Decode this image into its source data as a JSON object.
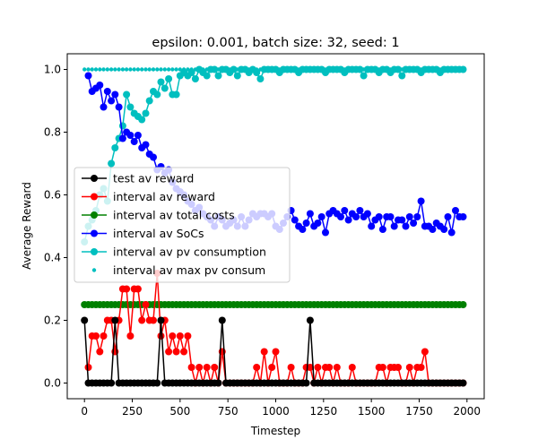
{
  "chart_data": {
    "type": "line",
    "title": "epsilon: 0.001, batch size: 32, seed: 1",
    "xlabel": "Timestep",
    "ylabel": "Average Reward",
    "xlim": [
      -90,
      2090
    ],
    "ylim": [
      -0.05,
      1.05
    ],
    "xticks": [
      0,
      250,
      500,
      750,
      1000,
      1250,
      1500,
      1750,
      2000
    ],
    "xtick_labels": [
      "0",
      "250",
      "500",
      "750",
      "1000",
      "1250",
      "1500",
      "1750",
      "2000"
    ],
    "yticks": [
      0.0,
      0.2,
      0.4,
      0.6,
      0.8,
      1.0
    ],
    "ytick_labels": [
      "0.0",
      "0.2",
      "0.4",
      "0.6",
      "0.8",
      "1.0"
    ],
    "grid": false,
    "legend_position": "center-left",
    "legend": [
      "test av reward",
      "interval av reward",
      "interval av total costs",
      "interval av SoCs",
      "interval av pv consumption",
      "interval av max pv consum"
    ],
    "series": [
      {
        "name": "test av reward",
        "color": "#000000",
        "style": "line-marker",
        "x": [
          0,
          20,
          40,
          60,
          80,
          100,
          120,
          140,
          160,
          180,
          200,
          220,
          240,
          260,
          280,
          300,
          320,
          340,
          360,
          380,
          400,
          420,
          440,
          460,
          480,
          500,
          520,
          540,
          560,
          580,
          600,
          620,
          640,
          660,
          680,
          700,
          720,
          740,
          760,
          780,
          800,
          820,
          840,
          860,
          880,
          900,
          920,
          940,
          960,
          980,
          1000,
          1020,
          1040,
          1060,
          1080,
          1100,
          1120,
          1140,
          1160,
          1180,
          1200,
          1220,
          1240,
          1260,
          1280,
          1300,
          1320,
          1340,
          1360,
          1380,
          1400,
          1420,
          1440,
          1460,
          1480,
          1500,
          1520,
          1540,
          1560,
          1580,
          1600,
          1620,
          1640,
          1660,
          1680,
          1700,
          1720,
          1740,
          1760,
          1780,
          1800,
          1820,
          1840,
          1860,
          1880,
          1900,
          1920,
          1940,
          1960,
          1980
        ],
        "y": [
          0.2,
          0,
          0,
          0,
          0,
          0,
          0,
          0,
          0.2,
          0,
          0,
          0,
          0,
          0,
          0,
          0,
          0,
          0,
          0,
          0,
          0.2,
          0,
          0,
          0,
          0,
          0,
          0,
          0,
          0,
          0,
          0,
          0,
          0,
          0,
          0,
          0,
          0.2,
          0,
          0,
          0,
          0,
          0,
          0,
          0,
          0,
          0,
          0,
          0,
          0,
          0,
          0,
          0,
          0,
          0,
          0,
          0,
          0,
          0,
          0,
          0.2,
          0,
          0,
          0,
          0,
          0,
          0,
          0,
          0,
          0,
          0,
          0,
          0,
          0,
          0,
          0,
          0,
          0,
          0,
          0,
          0,
          0,
          0,
          0,
          0,
          0,
          0,
          0,
          0,
          0,
          0,
          0,
          0,
          0,
          0,
          0,
          0,
          0,
          0,
          0,
          0
        ]
      },
      {
        "name": "interval av reward",
        "color": "#ff0000",
        "style": "line-marker",
        "x": [
          20,
          40,
          60,
          80,
          100,
          120,
          140,
          160,
          180,
          200,
          220,
          240,
          260,
          280,
          300,
          320,
          340,
          360,
          380,
          400,
          420,
          440,
          460,
          480,
          500,
          520,
          540,
          560,
          580,
          600,
          620,
          640,
          660,
          680,
          700,
          720,
          740,
          760,
          780,
          800,
          820,
          840,
          860,
          880,
          900,
          920,
          940,
          960,
          980,
          1000,
          1020,
          1040,
          1060,
          1080,
          1100,
          1120,
          1140,
          1160,
          1180,
          1200,
          1220,
          1240,
          1260,
          1280,
          1300,
          1320,
          1340,
          1360,
          1380,
          1400,
          1420,
          1440,
          1460,
          1480,
          1500,
          1520,
          1540,
          1560,
          1580,
          1600,
          1620,
          1640,
          1660,
          1680,
          1700,
          1720,
          1740,
          1760,
          1780,
          1800,
          1820,
          1840,
          1860,
          1880,
          1900,
          1920,
          1940,
          1960,
          1980
        ],
        "y": [
          0.05,
          0.15,
          0.15,
          0.1,
          0.15,
          0.2,
          0.2,
          0.1,
          0.2,
          0.3,
          0.3,
          0.15,
          0.3,
          0.3,
          0.2,
          0.25,
          0.2,
          0.2,
          0.35,
          0.15,
          0.2,
          0.1,
          0.15,
          0.1,
          0.15,
          0.1,
          0.15,
          0.05,
          0,
          0.05,
          0,
          0.05,
          0,
          0.05,
          0,
          0.1,
          0,
          0,
          0,
          0,
          0,
          0,
          0,
          0,
          0.05,
          0,
          0.1,
          0,
          0.05,
          0.1,
          0,
          0,
          0,
          0.05,
          0,
          0,
          0,
          0.05,
          0.05,
          0,
          0.05,
          0,
          0.05,
          0.05,
          0,
          0.05,
          0,
          0,
          0,
          0.05,
          0,
          0,
          0,
          0,
          0,
          0,
          0.05,
          0.05,
          0,
          0.05,
          0.05,
          0.05,
          0,
          0,
          0.05,
          0,
          0.05,
          0.05,
          0.1,
          0,
          0,
          0,
          0,
          0,
          0,
          0,
          0,
          0,
          0
        ]
      },
      {
        "name": "interval av total costs",
        "color": "#008000",
        "style": "line-marker",
        "x": [
          0,
          20,
          40,
          60,
          80,
          100,
          120,
          140,
          160,
          180,
          200,
          220,
          240,
          260,
          280,
          300,
          320,
          340,
          360,
          380,
          400,
          420,
          440,
          460,
          480,
          500,
          520,
          540,
          560,
          580,
          600,
          620,
          640,
          660,
          680,
          700,
          720,
          740,
          760,
          780,
          800,
          820,
          840,
          860,
          880,
          900,
          920,
          940,
          960,
          980,
          1000,
          1020,
          1040,
          1060,
          1080,
          1100,
          1120,
          1140,
          1160,
          1180,
          1200,
          1220,
          1240,
          1260,
          1280,
          1300,
          1320,
          1340,
          1360,
          1380,
          1400,
          1420,
          1440,
          1460,
          1480,
          1500,
          1520,
          1540,
          1560,
          1580,
          1600,
          1620,
          1640,
          1660,
          1680,
          1700,
          1720,
          1740,
          1760,
          1780,
          1800,
          1820,
          1840,
          1860,
          1880,
          1900,
          1920,
          1940,
          1960,
          1980
        ],
        "y": [
          0.25,
          0.25,
          0.25,
          0.25,
          0.25,
          0.25,
          0.25,
          0.25,
          0.25,
          0.25,
          0.25,
          0.25,
          0.25,
          0.25,
          0.25,
          0.25,
          0.25,
          0.25,
          0.25,
          0.25,
          0.25,
          0.25,
          0.25,
          0.25,
          0.25,
          0.25,
          0.25,
          0.25,
          0.25,
          0.25,
          0.25,
          0.25,
          0.25,
          0.25,
          0.25,
          0.25,
          0.25,
          0.25,
          0.25,
          0.25,
          0.25,
          0.25,
          0.25,
          0.25,
          0.25,
          0.25,
          0.25,
          0.25,
          0.25,
          0.25,
          0.25,
          0.25,
          0.25,
          0.25,
          0.25,
          0.25,
          0.25,
          0.25,
          0.25,
          0.25,
          0.25,
          0.25,
          0.25,
          0.25,
          0.25,
          0.25,
          0.25,
          0.25,
          0.25,
          0.25,
          0.25,
          0.25,
          0.25,
          0.25,
          0.25,
          0.25,
          0.25,
          0.25,
          0.25,
          0.25,
          0.25,
          0.25,
          0.25,
          0.25,
          0.25,
          0.25,
          0.25,
          0.25,
          0.25,
          0.25,
          0.25,
          0.25,
          0.25,
          0.25,
          0.25,
          0.25,
          0.25,
          0.25,
          0.25,
          0.25
        ]
      },
      {
        "name": "interval av SoCs",
        "color": "#0000ff",
        "style": "line-marker",
        "x": [
          20,
          40,
          60,
          80,
          100,
          120,
          140,
          160,
          180,
          200,
          220,
          240,
          260,
          280,
          300,
          320,
          340,
          360,
          380,
          400,
          420,
          440,
          460,
          480,
          500,
          520,
          540,
          560,
          580,
          600,
          620,
          640,
          660,
          680,
          700,
          720,
          740,
          760,
          780,
          800,
          820,
          840,
          860,
          880,
          900,
          920,
          940,
          960,
          980,
          1000,
          1020,
          1040,
          1060,
          1080,
          1100,
          1120,
          1140,
          1160,
          1180,
          1200,
          1220,
          1240,
          1260,
          1280,
          1300,
          1320,
          1340,
          1360,
          1380,
          1400,
          1420,
          1440,
          1460,
          1480,
          1500,
          1520,
          1540,
          1560,
          1580,
          1600,
          1620,
          1640,
          1660,
          1680,
          1700,
          1720,
          1740,
          1760,
          1780,
          1800,
          1820,
          1840,
          1860,
          1880,
          1900,
          1920,
          1940,
          1960,
          1980
        ],
        "y": [
          0.98,
          0.93,
          0.94,
          0.95,
          0.88,
          0.93,
          0.9,
          0.92,
          0.88,
          0.78,
          0.8,
          0.79,
          0.77,
          0.79,
          0.75,
          0.76,
          0.73,
          0.72,
          0.68,
          0.69,
          0.67,
          0.68,
          0.64,
          0.62,
          0.61,
          0.6,
          0.58,
          0.57,
          0.55,
          0.56,
          0.54,
          0.53,
          0.52,
          0.5,
          0.53,
          0.52,
          0.5,
          0.51,
          0.52,
          0.5,
          0.53,
          0.5,
          0.52,
          0.54,
          0.53,
          0.54,
          0.54,
          0.53,
          0.54,
          0.5,
          0.49,
          0.51,
          0.53,
          0.55,
          0.52,
          0.5,
          0.49,
          0.51,
          0.54,
          0.5,
          0.51,
          0.53,
          0.48,
          0.54,
          0.55,
          0.54,
          0.53,
          0.55,
          0.52,
          0.54,
          0.53,
          0.55,
          0.53,
          0.54,
          0.5,
          0.52,
          0.53,
          0.49,
          0.53,
          0.53,
          0.5,
          0.52,
          0.52,
          0.5,
          0.53,
          0.51,
          0.53,
          0.58,
          0.5,
          0.5,
          0.49,
          0.51,
          0.5,
          0.49,
          0.53,
          0.48,
          0.55,
          0.53,
          0.53
        ]
      },
      {
        "name": "interval av pv consumption",
        "color": "#00bfbf",
        "style": "line-marker",
        "x": [
          0,
          20,
          40,
          60,
          80,
          100,
          120,
          140,
          160,
          180,
          200,
          220,
          240,
          260,
          280,
          300,
          320,
          340,
          360,
          380,
          400,
          420,
          440,
          460,
          480,
          500,
          520,
          540,
          560,
          580,
          600,
          620,
          640,
          660,
          680,
          700,
          720,
          740,
          760,
          780,
          800,
          820,
          840,
          860,
          880,
          900,
          920,
          940,
          960,
          980,
          1000,
          1020,
          1040,
          1060,
          1080,
          1100,
          1120,
          1140,
          1160,
          1180,
          1200,
          1220,
          1240,
          1260,
          1280,
          1300,
          1320,
          1340,
          1360,
          1380,
          1400,
          1420,
          1440,
          1460,
          1480,
          1500,
          1520,
          1540,
          1560,
          1580,
          1600,
          1620,
          1640,
          1660,
          1680,
          1700,
          1720,
          1740,
          1760,
          1780,
          1800,
          1820,
          1840,
          1860,
          1880,
          1900,
          1920,
          1940,
          1960,
          1980
        ],
        "y": [
          0.45,
          0.5,
          0.52,
          0.55,
          0.6,
          0.62,
          0.58,
          0.7,
          0.75,
          0.78,
          0.82,
          0.92,
          0.88,
          0.86,
          0.85,
          0.84,
          0.86,
          0.9,
          0.93,
          0.92,
          0.96,
          0.94,
          0.97,
          0.92,
          0.92,
          0.98,
          0.99,
          0.98,
          0.99,
          0.97,
          1,
          0.99,
          0.98,
          1,
          1,
          0.98,
          1,
          1,
          0.99,
          1,
          0.98,
          1,
          1,
          0.99,
          1,
          0.99,
          0.97,
          1,
          1,
          1,
          1,
          0.99,
          1,
          1,
          1,
          1,
          0.99,
          1,
          1,
          1,
          1,
          1,
          1,
          0.99,
          1,
          1,
          1,
          1,
          0.99,
          1,
          1,
          1,
          1,
          0.98,
          1,
          1,
          1,
          0.99,
          1,
          1,
          0.99,
          1,
          1,
          0.98,
          1,
          1,
          1,
          1,
          0.99,
          1,
          1,
          1,
          1,
          0.99,
          1,
          1,
          1,
          1,
          1,
          1
        ]
      },
      {
        "name": "interval av max pv consum",
        "color": "#00bfbf",
        "style": "dots",
        "x": [
          0,
          20,
          40,
          60,
          80,
          100,
          120,
          140,
          160,
          180,
          200,
          220,
          240,
          260,
          280,
          300,
          320,
          340,
          360,
          380,
          400,
          420,
          440,
          460,
          480,
          500,
          520,
          540,
          560,
          580,
          600,
          620,
          640,
          660,
          680,
          700,
          720,
          740,
          760,
          780,
          800,
          820,
          840,
          860,
          880,
          900,
          920,
          940,
          960,
          980,
          1000,
          1020,
          1040,
          1060,
          1080,
          1100,
          1120,
          1140,
          1160,
          1180,
          1200,
          1220,
          1240,
          1260,
          1280,
          1300,
          1320,
          1340,
          1360,
          1380,
          1400,
          1420,
          1440,
          1460,
          1480,
          1500,
          1520,
          1540,
          1560,
          1580,
          1600,
          1620,
          1640,
          1660,
          1680,
          1700,
          1720,
          1740,
          1760,
          1780,
          1800,
          1820,
          1840,
          1860,
          1880,
          1900,
          1920,
          1940,
          1960,
          1980
        ],
        "y": [
          1,
          1,
          1,
          1,
          1,
          1,
          1,
          1,
          1,
          1,
          1,
          1,
          1,
          1,
          1,
          1,
          1,
          1,
          1,
          1,
          1,
          1,
          1,
          1,
          1,
          1,
          1,
          1,
          1,
          1,
          1,
          1,
          1,
          1,
          1,
          1,
          1,
          1,
          1,
          1,
          1,
          1,
          1,
          1,
          1,
          1,
          1,
          1,
          1,
          1,
          1,
          1,
          1,
          1,
          1,
          1,
          1,
          1,
          1,
          1,
          1,
          1,
          1,
          1,
          1,
          1,
          1,
          1,
          1,
          1,
          1,
          1,
          1,
          1,
          1,
          1,
          1,
          1,
          1,
          1,
          1,
          1,
          1,
          1,
          1,
          1,
          1,
          1,
          1,
          1,
          1,
          1,
          1,
          1,
          1,
          1,
          1,
          1,
          1,
          1
        ]
      }
    ]
  }
}
